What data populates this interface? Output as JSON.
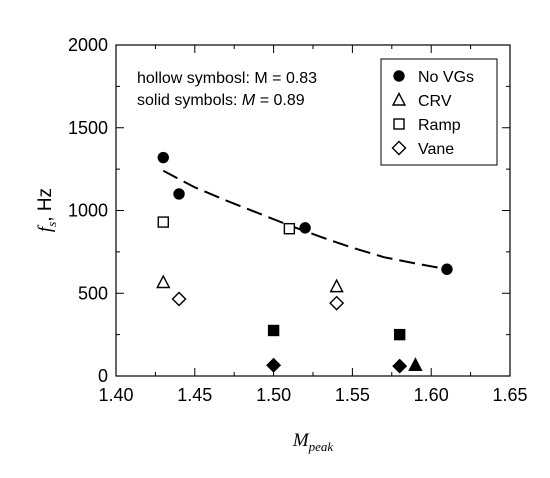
{
  "chart_data": {
    "type": "scatter",
    "xlabel": "M",
    "xlabel_sub": "peak",
    "ylabel": "f",
    "ylabel_sub": "s",
    "ylabel_rest": ", Hz",
    "xlim": [
      1.4,
      1.65
    ],
    "ylim": [
      0,
      2000
    ],
    "x_ticks": [
      "1.40",
      "1.45",
      "1.50",
      "1.55",
      "1.60",
      "1.65"
    ],
    "y_ticks": [
      "0",
      "500",
      "1000",
      "1500",
      "2000"
    ],
    "annotations": {
      "line1": "hollow symbosl: M = 0.83",
      "line2_prefix": "solid symbols: ",
      "line2_var": "M",
      "line2_suffix": " = 0.89"
    },
    "legend_position": "top-right",
    "series": [
      {
        "name": "No VGs",
        "marker": "circle",
        "filled": true,
        "points": [
          [
            1.43,
            1320
          ],
          [
            1.44,
            1100
          ],
          [
            1.52,
            895
          ],
          [
            1.61,
            645
          ]
        ]
      },
      {
        "name": "CRV",
        "marker": "triangle",
        "filled": false,
        "points": [
          [
            1.43,
            565
          ],
          [
            1.54,
            540
          ]
        ]
      },
      {
        "name": "CRV",
        "marker": "triangle",
        "filled": true,
        "legend": false,
        "points": [
          [
            1.59,
            65
          ]
        ]
      },
      {
        "name": "Ramp",
        "marker": "square",
        "filled": false,
        "points": [
          [
            1.43,
            930
          ],
          [
            1.51,
            890
          ]
        ]
      },
      {
        "name": "Ramp",
        "marker": "square",
        "filled": true,
        "legend": false,
        "points": [
          [
            1.5,
            275
          ],
          [
            1.58,
            250
          ]
        ]
      },
      {
        "name": "Vane",
        "marker": "diamond",
        "filled": false,
        "points": [
          [
            1.44,
            465
          ],
          [
            1.54,
            440
          ]
        ]
      },
      {
        "name": "Vane",
        "marker": "diamond",
        "filled": true,
        "legend": false,
        "points": [
          [
            1.5,
            65
          ],
          [
            1.58,
            60
          ]
        ]
      }
    ],
    "trend_line": {
      "style": "dashed",
      "points": [
        [
          1.43,
          1240
        ],
        [
          1.45,
          1140
        ],
        [
          1.47,
          1060
        ],
        [
          1.49,
          985
        ],
        [
          1.51,
          910
        ],
        [
          1.53,
          840
        ],
        [
          1.55,
          775
        ],
        [
          1.57,
          718
        ],
        [
          1.59,
          680
        ],
        [
          1.61,
          645
        ]
      ]
    }
  }
}
